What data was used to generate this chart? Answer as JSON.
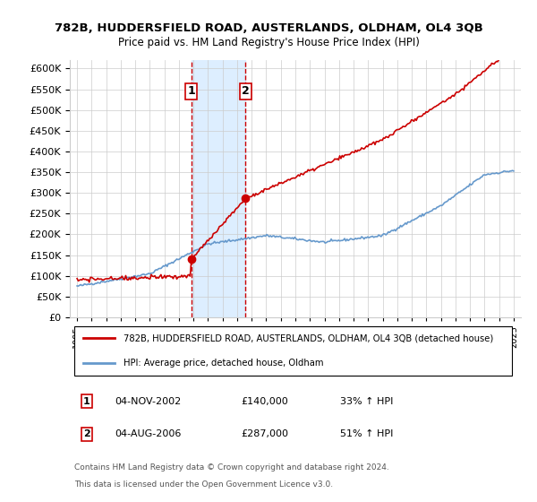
{
  "title": "782B, HUDDERSFIELD ROAD, AUSTERLANDS, OLDHAM, OL4 3QB",
  "subtitle": "Price paid vs. HM Land Registry's House Price Index (HPI)",
  "legend_line1": "782B, HUDDERSFIELD ROAD, AUSTERLANDS, OLDHAM, OL4 3QB (detached house)",
  "legend_line2": "HPI: Average price, detached house, Oldham",
  "footnote1": "Contains HM Land Registry data © Crown copyright and database right 2024.",
  "footnote2": "This data is licensed under the Open Government Licence v3.0.",
  "sale1_label": "1",
  "sale1_date": "04-NOV-2002",
  "sale1_price": "£140,000",
  "sale1_hpi": "33% ↑ HPI",
  "sale2_label": "2",
  "sale2_date": "04-AUG-2006",
  "sale2_price": "£287,000",
  "sale2_hpi": "51% ↑ HPI",
  "sale1_x": 2002.84,
  "sale1_y": 140000,
  "sale2_x": 2006.58,
  "sale2_y": 287000,
  "highlight_x1": 2002.84,
  "highlight_x2": 2006.58,
  "hpi_color": "#6699cc",
  "sale_color": "#cc0000",
  "highlight_color": "#ddeeff",
  "highlight_border": "#cc0000",
  "background_color": "#ffffff",
  "grid_color": "#cccccc",
  "ylim": [
    0,
    620000
  ],
  "xlim": [
    1994.5,
    2025.5
  ]
}
